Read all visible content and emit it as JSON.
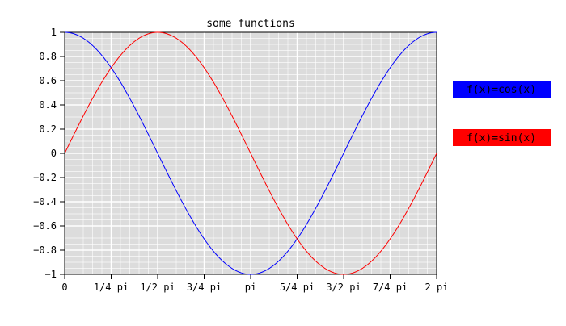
{
  "chart_data": {
    "type": "line",
    "title": "some functions",
    "xlabel": "",
    "ylabel": "",
    "xlim": [
      0,
      6.283185307179586
    ],
    "ylim": [
      -1,
      1
    ],
    "x_ticks": [
      {
        "value": 0,
        "label": "0"
      },
      {
        "value": 0.7853981633974483,
        "label": "1/4 pi"
      },
      {
        "value": 1.5707963267948966,
        "label": "1/2 pi"
      },
      {
        "value": 2.356194490192345,
        "label": "3/4 pi"
      },
      {
        "value": 3.141592653589793,
        "label": "pi"
      },
      {
        "value": 3.9269908169872414,
        "label": "5/4 pi"
      },
      {
        "value": 4.71238898038469,
        "label": "3/2 pi"
      },
      {
        "value": 5.497787143782138,
        "label": "7/4 pi"
      },
      {
        "value": 6.283185307179586,
        "label": "2 pi"
      }
    ],
    "y_ticks": [
      {
        "value": 1,
        "label": "1"
      },
      {
        "value": 0.8,
        "label": "0.8"
      },
      {
        "value": 0.6,
        "label": "0.6"
      },
      {
        "value": 0.4,
        "label": "0.4"
      },
      {
        "value": 0.2,
        "label": "0.2"
      },
      {
        "value": 0,
        "label": "0"
      },
      {
        "value": -0.2,
        "label": "−0.2"
      },
      {
        "value": -0.4,
        "label": "−0.4"
      },
      {
        "value": -0.6,
        "label": "−0.6"
      },
      {
        "value": -0.8,
        "label": "−0.8"
      },
      {
        "value": -1,
        "label": "−1"
      }
    ],
    "grid": true,
    "legend_position": "right",
    "series": [
      {
        "name": "f(x)=cos(x)",
        "color": "#0000ff",
        "x": [
          0,
          0.3927,
          0.7854,
          1.1781,
          1.5708,
          1.9635,
          2.3562,
          2.7489,
          3.1416,
          3.5343,
          3.927,
          4.3197,
          4.7124,
          5.1051,
          5.4978,
          5.8905,
          6.2832
        ],
        "y": [
          1,
          0.924,
          0.707,
          0.383,
          0,
          -0.383,
          -0.707,
          -0.924,
          -1,
          -0.924,
          -0.707,
          -0.383,
          0,
          0.383,
          0.707,
          0.924,
          1
        ]
      },
      {
        "name": "f(x)=sin(x)",
        "color": "#ff0000",
        "x": [
          0,
          0.3927,
          0.7854,
          1.1781,
          1.5708,
          1.9635,
          2.3562,
          2.7489,
          3.1416,
          3.5343,
          3.927,
          4.3197,
          4.7124,
          5.1051,
          5.4978,
          5.8905,
          6.2832
        ],
        "y": [
          0,
          0.383,
          0.707,
          0.924,
          1,
          0.924,
          0.707,
          0.383,
          0,
          -0.383,
          -0.707,
          -0.924,
          -1,
          -0.924,
          -0.707,
          -0.383,
          0
        ]
      }
    ]
  }
}
